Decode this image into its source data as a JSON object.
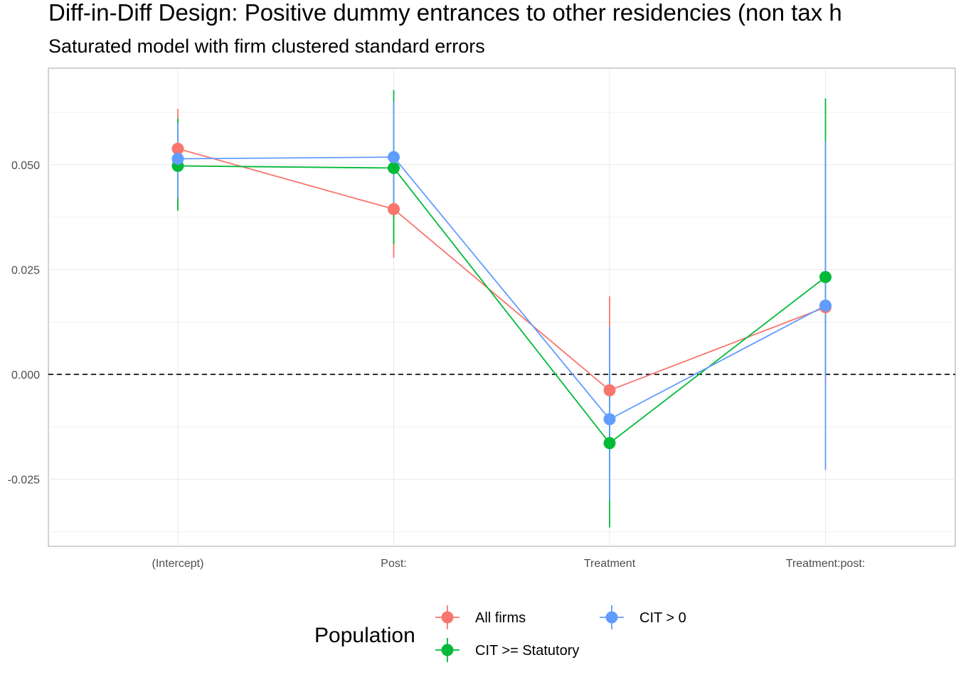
{
  "chart_data": {
    "type": "scatter",
    "title": "Diff-in-Diff Design: Positive dummy entrances to other residencies (non tax h",
    "subtitle": "Saturated model with firm clustered standard errors",
    "xlabel": "",
    "ylabel": "",
    "categories": [
      "(Intercept)",
      "Post:",
      "Treatment",
      "Treatment:post:"
    ],
    "y_ticks": [
      -0.025,
      0.0,
      0.025,
      0.05
    ],
    "y_tick_labels": [
      "-0.025",
      "0.000",
      "0.025",
      "0.050"
    ],
    "ylim": [
      -0.041,
      0.073
    ],
    "reference_line": {
      "y": 0,
      "style": "dashed"
    },
    "grid": true,
    "legend": {
      "title": "Population",
      "position": "bottom"
    },
    "series": [
      {
        "name": "All firms",
        "color": "#F8766D",
        "values": [
          0.0538,
          0.0394,
          -0.0038,
          0.016
        ],
        "lower": [
          0.0392,
          0.0278,
          -0.018,
          -0.002
        ],
        "upper": [
          0.0633,
          0.0512,
          0.0186,
          0.034
        ]
      },
      {
        "name": "CIT >= Statutory",
        "color": "#00BA38",
        "values": [
          0.0497,
          0.0492,
          -0.0164,
          0.0232
        ],
        "lower": [
          0.039,
          0.031,
          -0.0365,
          0.0
        ],
        "upper": [
          0.061,
          0.0678,
          0.001,
          0.0658
        ]
      },
      {
        "name": "CIT > 0",
        "color": "#619CFF",
        "values": [
          0.0514,
          0.0518,
          -0.0107,
          0.0164
        ],
        "lower": [
          0.042,
          0.04,
          -0.03,
          -0.0228
        ],
        "upper": [
          0.06,
          0.065,
          0.0113,
          0.0556
        ]
      }
    ]
  }
}
